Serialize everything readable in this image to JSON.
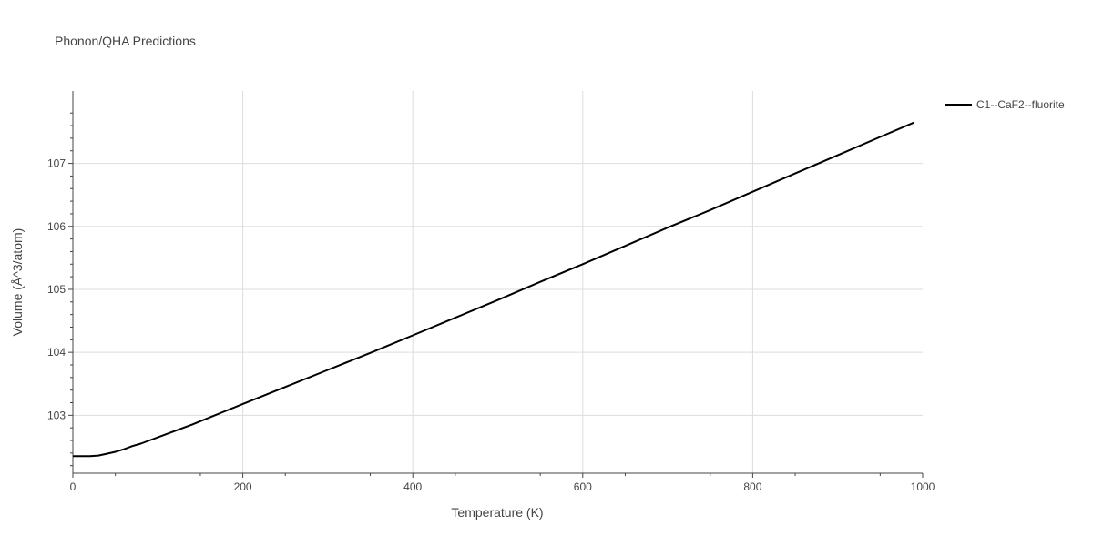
{
  "chart_data": {
    "type": "line",
    "title": "Phonon/QHA Predictions",
    "xlabel": "Temperature (K)",
    "ylabel": "Volume (Å^3/atom)",
    "xlim": [
      0,
      1000
    ],
    "ylim": [
      102.08,
      108.15
    ],
    "x_ticks": [
      0,
      200,
      400,
      600,
      800,
      1000
    ],
    "x_tick_labels": [
      "0",
      "200",
      "400",
      "600",
      "800",
      "1000"
    ],
    "y_ticks": [
      103,
      104,
      105,
      106,
      107
    ],
    "y_tick_labels": [
      "103",
      "104",
      "105",
      "106",
      "107"
    ],
    "grid": true,
    "legend_position": "top-right",
    "series": [
      {
        "name": "C1--CaF2--fluorite",
        "color": "#000000",
        "x": [
          0,
          10,
          20,
          30,
          40,
          50,
          60,
          70,
          80,
          90,
          100,
          120,
          140,
          160,
          180,
          200,
          250,
          300,
          350,
          400,
          450,
          500,
          550,
          600,
          650,
          700,
          750,
          800,
          850,
          900,
          950,
          990
        ],
        "y": [
          102.35,
          102.35,
          102.35,
          102.36,
          102.39,
          102.42,
          102.46,
          102.51,
          102.55,
          102.6,
          102.65,
          102.75,
          102.85,
          102.96,
          103.07,
          103.18,
          103.45,
          103.72,
          103.99,
          104.27,
          104.55,
          104.83,
          105.12,
          105.4,
          105.69,
          105.98,
          106.26,
          106.55,
          106.84,
          107.13,
          107.42,
          107.65
        ]
      }
    ]
  }
}
